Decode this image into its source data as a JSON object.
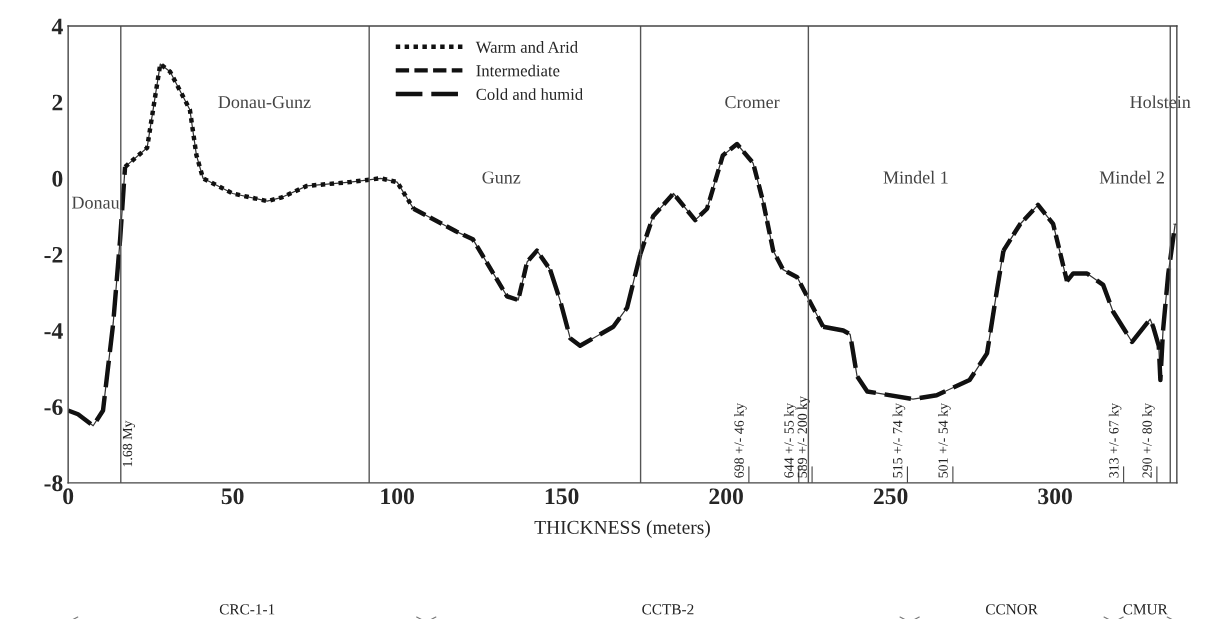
{
  "chart_data": {
    "type": "line",
    "xlabel": "THICKNESS (meters)",
    "xlim": [
      0,
      337
    ],
    "xticks": [
      0,
      50,
      100,
      150,
      200,
      250,
      300
    ],
    "ylim": [
      -8,
      4
    ],
    "yticks": [
      -8,
      -6,
      -4,
      -2,
      0,
      2,
      4
    ],
    "grid": false,
    "legend": "top",
    "marker": "none",
    "series": [
      {
        "color": "#333333",
        "line_style": "solid",
        "x": [
          0,
          3,
          7.6,
          10.6,
          13.7,
          15.8,
          17.3,
          24,
          28,
          31,
          37,
          39,
          41,
          50,
          60.5,
          65,
          72.6,
          85.7,
          95,
          100,
          105,
          118,
          123,
          133.4,
          136.8,
          139.5,
          142.5,
          146.5,
          149.5,
          152.6,
          155.6,
          165.7,
          169.9,
          173.9,
          177.8,
          184,
          190.6,
          194.2,
          199,
          203.3,
          208.2,
          211.2,
          214.3,
          217.3,
          221.6,
          224.6,
          229.5,
          235.6,
          237.7,
          239.8,
          242.9,
          256.8,
          264,
          274,
          279.3,
          282.4,
          284.3,
          289.4,
          294.8,
          299.4,
          303.6,
          305.5,
          309.7,
          314.6,
          317.6,
          323.4,
          328.9,
          329.8,
          331.5,
          332,
          332.8,
          334.4,
          336.5
        ],
        "values": [
          -6.1,
          -6.2,
          -6.5,
          -6.1,
          -3.8,
          -1.6,
          0.3,
          0.8,
          3.0,
          2.8,
          1.8,
          0.6,
          0.0,
          -0.4,
          -0.6,
          -0.5,
          -0.2,
          -0.1,
          0.0,
          -0.1,
          -0.8,
          -1.4,
          -1.6,
          -3.1,
          -3.2,
          -2.2,
          -1.9,
          -2.4,
          -3.2,
          -4.2,
          -4.4,
          -3.9,
          -3.4,
          -2.0,
          -1.0,
          -0.4,
          -1.1,
          -0.8,
          0.6,
          0.9,
          0.4,
          -0.6,
          -1.9,
          -2.4,
          -2.6,
          -3.1,
          -3.9,
          -4.0,
          -4.1,
          -5.2,
          -5.6,
          -5.8,
          -5.7,
          -5.3,
          -4.6,
          -2.9,
          -1.9,
          -1.2,
          -0.7,
          -1.2,
          -2.7,
          -2.5,
          -2.5,
          -2.8,
          -3.5,
          -4.3,
          -3.7,
          -3.9,
          -4.4,
          -5.3,
          -4.0,
          -2.5,
          -1.2
        ]
      },
      {
        "name": "Warm and Arid",
        "color": "#111111",
        "line_style": "dotted",
        "x": [
          17.3,
          24,
          28,
          31,
          37,
          39,
          41,
          50,
          60.5,
          65,
          72.6,
          85.7,
          95,
          100,
          105
        ],
        "values": [
          0.3,
          0.8,
          3.0,
          2.8,
          1.8,
          0.6,
          0.0,
          -0.4,
          -0.6,
          -0.5,
          -0.2,
          -0.1,
          0.0,
          -0.1,
          -0.8
        ]
      },
      {
        "name": "Intermediate",
        "color": "#111111",
        "line_style": "dashed",
        "x": [
          105,
          118,
          123,
          133.4,
          136.8,
          139.5,
          142.5,
          146.5,
          160,
          173.9,
          177.8,
          184,
          190.6,
          194.2,
          199,
          203.3,
          208.2,
          211.2,
          214.3,
          217.3,
          221.6,
          224.6,
          229.5,
          260,
          284.3,
          289.4,
          294.8,
          299.4,
          303.6
        ],
        "values": [
          -0.8,
          -1.4,
          -1.6,
          -3.1,
          -3.2,
          -2.2,
          -1.9,
          -2.4,
          null,
          -2.0,
          -1.0,
          -0.4,
          -1.1,
          -0.8,
          0.6,
          0.9,
          0.4,
          -0.6,
          -1.9,
          -2.4,
          -2.6,
          -3.1,
          -3.9,
          null,
          -1.9,
          -1.2,
          -0.7,
          -1.2,
          -2.7
        ]
      },
      {
        "name": "Cold and humid",
        "color": "#111111",
        "line_style": "dashed",
        "x": [
          0,
          3,
          7.6,
          10.6,
          13.7,
          15.8,
          17.3,
          100,
          146.5,
          149.5,
          152.6,
          155.6,
          165.7,
          169.9,
          173.9,
          200,
          229.5,
          235.6,
          237.7,
          239.8,
          242.9,
          256.8,
          264,
          274,
          279.3,
          282.4,
          284.3,
          295,
          303.6,
          305.5,
          309.7,
          314.6,
          317.6,
          323.4,
          328.9,
          329.8,
          331.5,
          332,
          332.8,
          334.4,
          336.5
        ],
        "values": [
          -6.1,
          -6.2,
          -6.5,
          -6.1,
          -3.8,
          -1.6,
          0.3,
          null,
          -2.4,
          -3.2,
          -4.2,
          -4.4,
          -3.9,
          -3.4,
          -2.0,
          null,
          -3.9,
          -4.0,
          -4.1,
          -5.2,
          -5.6,
          -5.8,
          -5.7,
          -5.3,
          -4.6,
          -2.9,
          -1.9,
          null,
          -2.7,
          -2.5,
          -2.5,
          -2.8,
          -3.5,
          -4.3,
          -3.7,
          -3.9,
          -4.4,
          -5.3,
          -4.0,
          -2.5,
          -1.2
        ]
      }
    ],
    "ref_lines": [
      {
        "axis": "x",
        "value": 16,
        "label": "1.68 My",
        "color": "#555555"
      },
      {
        "axis": "x",
        "value": 91.5,
        "color": "#555555"
      },
      {
        "axis": "x",
        "value": 174,
        "color": "#555555"
      },
      {
        "axis": "x",
        "value": 225,
        "color": "#555555"
      },
      {
        "axis": "x",
        "value": 335,
        "color": "#555555"
      }
    ],
    "annotations": [
      "Donau",
      "Donau-Gunz",
      "Gunz",
      "Cromer",
      "Mindel 1",
      "Mindel 2",
      "Holstein",
      "698 +/- 46 ky",
      "644 +/- 55 ky",
      "589 +/- 200 ky",
      "515 +/- 74 ky",
      "501 +/- 54 ky",
      "313 +/- 67 ky",
      "290 +/- 80 ky",
      "CRC-1-1",
      "CCTB-2",
      "CCNOR",
      "CMUR"
    ]
  }
}
